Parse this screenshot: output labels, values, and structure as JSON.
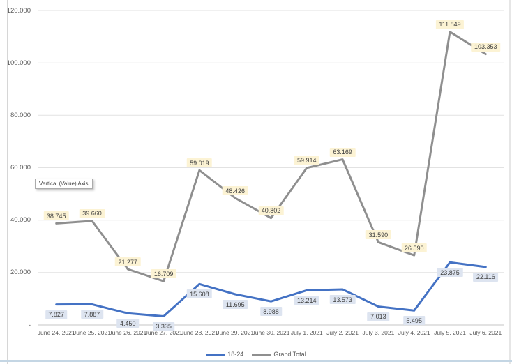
{
  "tooltip": {
    "text": "Vertical (Value) Axis"
  },
  "legend": {
    "position": "bottom"
  },
  "colors": {
    "series_18_24": "#4472C4",
    "series_grand_total": "#8f8f8f",
    "label_bg_18_24": "#dde4f0",
    "label_bg_grand_total": "#fcf3d4",
    "gridline": "#e2e2e2",
    "axis_line": "#c6c6c6",
    "tick_text": "#595959"
  },
  "chart_data": {
    "type": "line",
    "title": "",
    "xlabel": "",
    "ylabel": "",
    "grid": true,
    "legend_position": "bottom",
    "number_format": "thousands-dot",
    "ylim": [
      0,
      120000
    ],
    "y_ticks": [
      {
        "value": 120000,
        "label": "120.000"
      },
      {
        "value": 100000,
        "label": "100.000"
      },
      {
        "value": 80000,
        "label": "80.000"
      },
      {
        "value": 60000,
        "label": "60.000"
      },
      {
        "value": 40000,
        "label": "40.000"
      },
      {
        "value": 20000,
        "label": "20.000"
      },
      {
        "value": 0,
        "label": "-"
      }
    ],
    "categories": [
      "June 24, 2021",
      "June 25, 2021",
      "June 26, 2021",
      "June 27, 2021",
      "June 28, 2021",
      "June 29, 2021",
      "June 30, 2021",
      "July 1, 2021",
      "July 2, 2021",
      "July 3, 2021",
      "July 4, 2021",
      "July 5, 2021",
      "July 6, 2021"
    ],
    "series": [
      {
        "name": "18-24",
        "color": "#4472C4",
        "label_bg": "#dde4f0",
        "label_position": "below",
        "values": [
          7827,
          7887,
          4450,
          3335,
          15608,
          11695,
          8988,
          13214,
          13573,
          7013,
          5495,
          23875,
          22116
        ]
      },
      {
        "name": "Grand Total",
        "color": "#8f8f8f",
        "label_bg": "#fcf3d4",
        "label_position": "above",
        "values": [
          38745,
          39660,
          21277,
          16709,
          59019,
          48426,
          40802,
          59914,
          63169,
          31590,
          26590,
          111849,
          103353
        ]
      }
    ]
  }
}
